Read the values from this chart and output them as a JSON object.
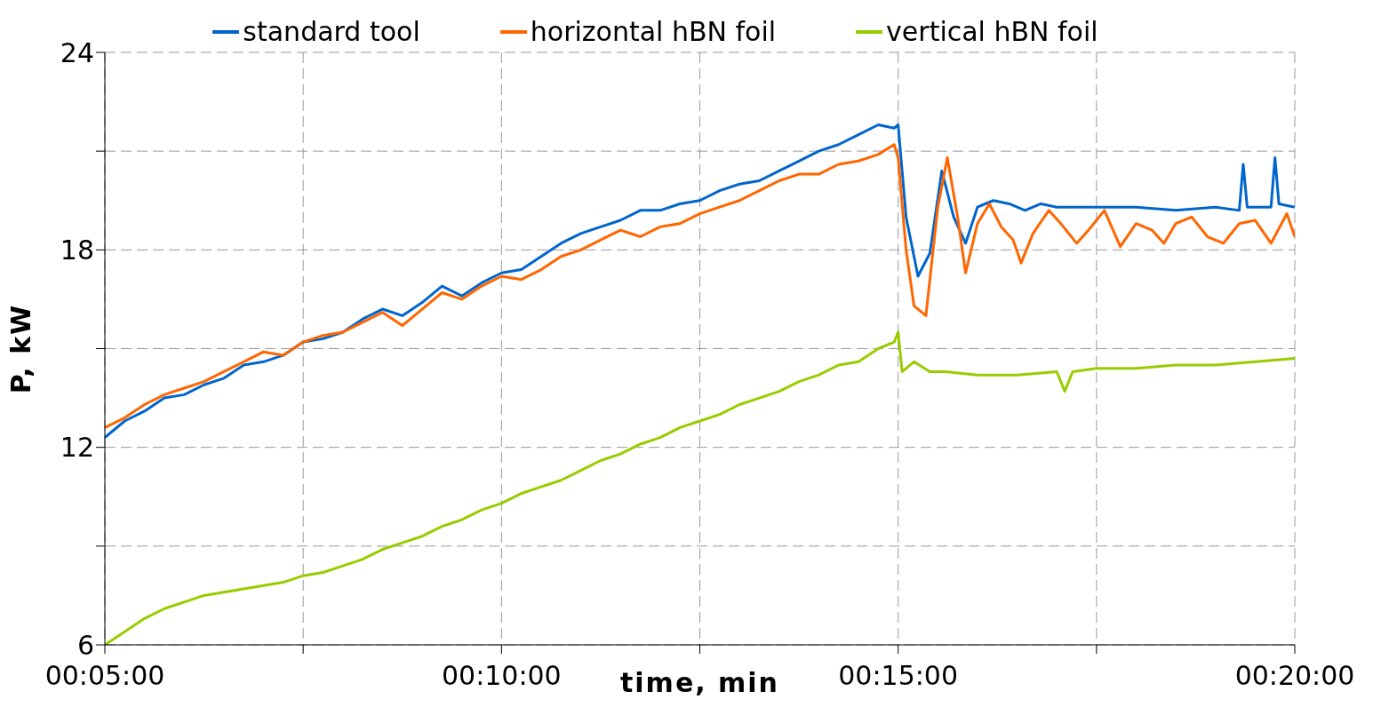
{
  "chart_data": {
    "type": "line",
    "xlabel": "time, min",
    "ylabel": "P, kW",
    "xlim": [
      5,
      20
    ],
    "xticks": [
      {
        "value": 5,
        "label": "00:05:00"
      },
      {
        "value": 7.5,
        "label": null
      },
      {
        "value": 10,
        "label": "00:10:00"
      },
      {
        "value": 12.5,
        "label": null
      },
      {
        "value": 15,
        "label": "00:15:00"
      },
      {
        "value": 17.5,
        "label": null
      },
      {
        "value": 20,
        "label": "00:20:00"
      }
    ],
    "ylim": [
      6,
      24
    ],
    "yticks": [
      6,
      {
        "value": 9,
        "label": null
      },
      12,
      {
        "value": 15,
        "label": null
      },
      18,
      {
        "value": 21,
        "label": null
      },
      24
    ],
    "grid": true,
    "legend": "top",
    "series": [
      {
        "name": "standard tool",
        "color": "#0066cc",
        "x": [
          5,
          5.25,
          5.5,
          5.75,
          6,
          6.25,
          6.5,
          6.75,
          7,
          7.25,
          7.5,
          7.75,
          8,
          8.25,
          8.5,
          8.75,
          9,
          9.25,
          9.5,
          9.75,
          10,
          10.25,
          10.5,
          10.75,
          11,
          11.25,
          11.5,
          11.75,
          12,
          12.25,
          12.5,
          12.75,
          13,
          13.25,
          13.5,
          13.75,
          14,
          14.25,
          14.5,
          14.75,
          14.95,
          15,
          15.1,
          15.25,
          15.4,
          15.55,
          15.7,
          15.85,
          16,
          16.2,
          16.4,
          16.6,
          16.8,
          17,
          17.5,
          18,
          18.5,
          19,
          19.3,
          19.35,
          19.4,
          19.5,
          19.7,
          19.75,
          19.8,
          20
        ],
        "values": [
          12.3,
          12.8,
          13.1,
          13.5,
          13.6,
          13.9,
          14.1,
          14.5,
          14.6,
          14.8,
          15.2,
          15.3,
          15.5,
          15.9,
          16.2,
          16.0,
          16.4,
          16.9,
          16.6,
          17.0,
          17.3,
          17.4,
          17.8,
          18.2,
          18.5,
          18.7,
          18.9,
          19.2,
          19.2,
          19.4,
          19.5,
          19.8,
          20.0,
          20.1,
          20.4,
          20.7,
          21.0,
          21.2,
          21.5,
          21.8,
          21.7,
          21.8,
          19.0,
          17.2,
          17.9,
          20.4,
          19.0,
          18.2,
          19.3,
          19.5,
          19.4,
          19.2,
          19.4,
          19.3,
          19.3,
          19.3,
          19.2,
          19.3,
          19.2,
          20.6,
          19.3,
          19.3,
          19.3,
          20.8,
          19.4,
          19.3
        ]
      },
      {
        "name": "horizontal hBN foil",
        "color": "#ff6600",
        "x": [
          5,
          5.25,
          5.5,
          5.75,
          6,
          6.25,
          6.5,
          6.75,
          7,
          7.25,
          7.5,
          7.75,
          8,
          8.25,
          8.5,
          8.75,
          9,
          9.25,
          9.5,
          9.75,
          10,
          10.25,
          10.5,
          10.75,
          11,
          11.25,
          11.5,
          11.75,
          12,
          12.25,
          12.5,
          12.75,
          13,
          13.25,
          13.5,
          13.75,
          14,
          14.25,
          14.5,
          14.75,
          14.95,
          15,
          15.1,
          15.2,
          15.35,
          15.5,
          15.62,
          15.75,
          15.85,
          16,
          16.15,
          16.3,
          16.45,
          16.55,
          16.7,
          16.9,
          17.05,
          17.25,
          17.4,
          17.6,
          17.8,
          18.0,
          18.2,
          18.35,
          18.5,
          18.7,
          18.9,
          19.1,
          19.3,
          19.5,
          19.7,
          19.9,
          20
        ],
        "values": [
          12.6,
          12.9,
          13.3,
          13.6,
          13.8,
          14.0,
          14.3,
          14.6,
          14.9,
          14.8,
          15.2,
          15.4,
          15.5,
          15.8,
          16.1,
          15.7,
          16.2,
          16.7,
          16.5,
          16.9,
          17.2,
          17.1,
          17.4,
          17.8,
          18.0,
          18.3,
          18.6,
          18.4,
          18.7,
          18.8,
          19.1,
          19.3,
          19.5,
          19.8,
          20.1,
          20.3,
          20.3,
          20.6,
          20.7,
          20.9,
          21.2,
          20.8,
          18.0,
          16.3,
          16.0,
          19.3,
          20.8,
          19.0,
          17.3,
          18.8,
          19.4,
          18.7,
          18.3,
          17.6,
          18.5,
          19.2,
          18.8,
          18.2,
          18.6,
          19.2,
          18.1,
          18.8,
          18.6,
          18.2,
          18.8,
          19.0,
          18.4,
          18.2,
          18.8,
          18.9,
          18.2,
          19.1,
          18.4
        ]
      },
      {
        "name": "vertical hBN foil",
        "color": "#99cc00",
        "x": [
          5,
          5.25,
          5.5,
          5.75,
          6,
          6.25,
          6.5,
          6.75,
          7,
          7.25,
          7.5,
          7.75,
          8,
          8.25,
          8.5,
          8.75,
          9,
          9.25,
          9.5,
          9.75,
          10,
          10.25,
          10.5,
          10.75,
          11,
          11.25,
          11.5,
          11.75,
          12,
          12.25,
          12.5,
          12.75,
          13,
          13.25,
          13.5,
          13.75,
          14,
          14.25,
          14.5,
          14.75,
          14.95,
          15,
          15.05,
          15.2,
          15.4,
          15.6,
          16,
          16.5,
          17,
          17.1,
          17.2,
          17.5,
          18,
          18.5,
          19,
          19.5,
          20
        ],
        "values": [
          6.0,
          6.4,
          6.8,
          7.1,
          7.3,
          7.5,
          7.6,
          7.7,
          7.8,
          7.9,
          8.1,
          8.2,
          8.4,
          8.6,
          8.9,
          9.1,
          9.3,
          9.6,
          9.8,
          10.1,
          10.3,
          10.6,
          10.8,
          11.0,
          11.3,
          11.6,
          11.8,
          12.1,
          12.3,
          12.6,
          12.8,
          13.0,
          13.3,
          13.5,
          13.7,
          14.0,
          14.2,
          14.5,
          14.6,
          15.0,
          15.2,
          15.5,
          14.3,
          14.6,
          14.3,
          14.3,
          14.2,
          14.2,
          14.3,
          13.7,
          14.3,
          14.4,
          14.4,
          14.5,
          14.5,
          14.6,
          14.7
        ]
      }
    ]
  }
}
